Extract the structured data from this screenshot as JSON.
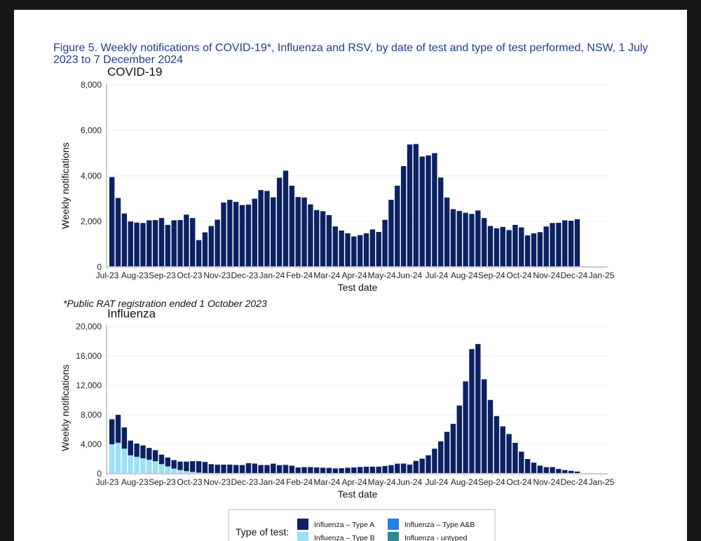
{
  "figure": {
    "title": "Figure 5. Weekly notifications of COVID-19*, Influenza and RSV, by date of test and type of test performed, NSW, 1 July 2023 to 7 December 2024",
    "footnote": "*Public RAT registration ended 1 October 2023"
  },
  "legend": {
    "title": "Type of test:",
    "items": [
      {
        "label": "Influenza – Type A",
        "color": "#0b2161"
      },
      {
        "label": "Influenza – Type A&B",
        "color": "#1f7fe8"
      },
      {
        "label": "Influenza – Type B",
        "color": "#9be0f7"
      },
      {
        "label": "Influenza - untyped",
        "color": "#2e8a8a"
      }
    ]
  },
  "colors": {
    "covid": "#0b2161",
    "flu_a": "#0b2161",
    "flu_b": "#9be0f7",
    "axis": "#cccccc",
    "grid": "#eeeeee"
  },
  "chart_data": [
    {
      "type": "bar",
      "title": "COVID-19",
      "xlabel": "Test date",
      "ylabel": "Weekly notifications",
      "ylim": [
        0,
        8000
      ],
      "yticks": [
        0,
        2000,
        4000,
        6000,
        8000
      ],
      "ytick_labels": [
        "0",
        "2,000",
        "4,000",
        "6,000",
        "8,000"
      ],
      "xtick_labels": [
        "Jul-23",
        "Aug-23",
        "Sep-23",
        "Oct-23",
        "Nov-23",
        "Dec-23",
        "Jan-24",
        "Feb-24",
        "Mar-24",
        "Apr-24",
        "May-24",
        "Jun-24",
        "Jul-24",
        "Aug-24",
        "Sep-24",
        "Oct-24",
        "Nov-24",
        "Dec-24",
        "Jan-25"
      ],
      "series": [
        {
          "name": "COVID-19",
          "values": [
            3950,
            3030,
            2350,
            2000,
            1950,
            1930,
            2050,
            2060,
            2150,
            1850,
            2050,
            2060,
            2300,
            2150,
            1180,
            1520,
            1800,
            2080,
            2830,
            2950,
            2860,
            2720,
            2740,
            3000,
            3380,
            3340,
            3060,
            3920,
            4230,
            3570,
            3070,
            3050,
            2750,
            2500,
            2450,
            2280,
            1780,
            1600,
            1480,
            1340,
            1400,
            1480,
            1650,
            1540,
            2070,
            2950,
            3570,
            4430,
            5380,
            5400,
            4850,
            4900,
            5000,
            3930,
            3050,
            2540,
            2460,
            2380,
            2330,
            2480,
            2150,
            1800,
            1700,
            1760,
            1620,
            1850,
            1740,
            1390,
            1480,
            1530,
            1780,
            1930,
            1940,
            2050,
            2030,
            2100
          ]
        }
      ]
    },
    {
      "type": "bar",
      "title": "Influenza",
      "xlabel": "Test date",
      "ylabel": "Weekly notifications",
      "ylim": [
        0,
        20000
      ],
      "yticks": [
        0,
        4000,
        8000,
        12000,
        16000,
        20000
      ],
      "ytick_labels": [
        "0",
        "4,000",
        "8,000",
        "12,000",
        "16,000",
        "20,000"
      ],
      "xtick_labels": [
        "Jul-23",
        "Aug-23",
        "Sep-23",
        "Oct-23",
        "Nov-23",
        "Dec-23",
        "Jan-24",
        "Feb-24",
        "Mar-24",
        "Apr-24",
        "May-24",
        "Jun-24",
        "Jul-24",
        "Aug-24",
        "Sep-24",
        "Oct-24",
        "Nov-24",
        "Dec-24",
        "Jan-25"
      ],
      "stacked": true,
      "series": [
        {
          "name": "Influenza – Type B",
          "values": [
            4000,
            4200,
            3400,
            2500,
            2300,
            2100,
            1900,
            1700,
            1300,
            1000,
            700,
            500,
            350,
            250,
            150,
            100,
            80,
            60,
            50,
            40,
            40,
            30,
            30,
            30,
            30,
            30,
            20,
            20,
            20,
            20,
            20,
            20,
            20,
            20,
            20,
            30,
            30,
            30,
            30,
            30,
            30,
            30,
            40,
            40,
            40,
            50,
            50,
            60,
            70,
            80,
            90,
            100,
            100,
            90,
            80,
            70,
            60,
            50,
            40,
            30,
            30,
            20,
            20,
            20,
            20,
            20,
            20,
            20,
            20,
            20,
            20,
            20,
            20,
            20,
            20,
            20
          ]
        },
        {
          "name": "Influenza – Type A",
          "values": [
            3400,
            3800,
            2900,
            2000,
            1800,
            1750,
            1600,
            1500,
            1300,
            1200,
            1150,
            1150,
            1300,
            1450,
            1550,
            1500,
            1220,
            1170,
            1180,
            1200,
            1150,
            1150,
            1400,
            1350,
            1150,
            1150,
            1350,
            1150,
            1180,
            1080,
            830,
            880,
            880,
            830,
            800,
            770,
            690,
            720,
            790,
            820,
            890,
            920,
            920,
            920,
            1010,
            1120,
            1320,
            1320,
            1170,
            1670,
            1960,
            2410,
            3300,
            4310,
            5610,
            6710,
            9210,
            12500,
            16900,
            17600,
            12800,
            10010,
            7810,
            6420,
            5380,
            4180,
            2980,
            1980,
            1480,
            1080,
            880,
            880,
            630,
            480,
            380,
            280
          ]
        }
      ]
    }
  ]
}
